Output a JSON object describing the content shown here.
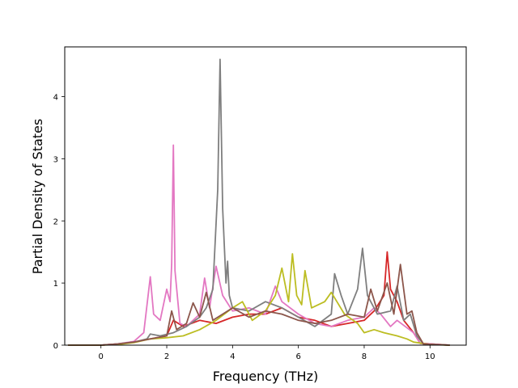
{
  "chart_data": {
    "type": "line",
    "title": "",
    "xlabel": "Frequency (THz)",
    "ylabel": "Partial Density of States",
    "xlim": [
      -1.1,
      11.1
    ],
    "ylim": [
      0,
      4.8
    ],
    "xticks": [
      0,
      2,
      4,
      6,
      8,
      10
    ],
    "yticks": [
      0,
      1,
      2,
      3,
      4
    ],
    "xtick_labels": [
      "0",
      "2",
      "4",
      "6",
      "8",
      "10"
    ],
    "ytick_labels": [
      "0",
      "1",
      "2",
      "3",
      "4"
    ],
    "grid": false,
    "legend": "none",
    "series": [
      {
        "color": "#d62728",
        "points": [
          [
            -1.0,
            0
          ],
          [
            0.0,
            0
          ],
          [
            0.5,
            0.02
          ],
          [
            1.0,
            0.05
          ],
          [
            1.5,
            0.1
          ],
          [
            2.0,
            0.15
          ],
          [
            2.2,
            0.4
          ],
          [
            2.5,
            0.3
          ],
          [
            3.0,
            0.4
          ],
          [
            3.5,
            0.35
          ],
          [
            4.0,
            0.45
          ],
          [
            4.5,
            0.5
          ],
          [
            5.0,
            0.5
          ],
          [
            5.5,
            0.6
          ],
          [
            6.0,
            0.45
          ],
          [
            6.5,
            0.4
          ],
          [
            7.0,
            0.3
          ],
          [
            7.5,
            0.35
          ],
          [
            8.0,
            0.4
          ],
          [
            8.3,
            0.55
          ],
          [
            8.6,
            0.8
          ],
          [
            8.7,
            1.5
          ],
          [
            8.8,
            0.9
          ],
          [
            9.0,
            0.7
          ],
          [
            9.2,
            0.4
          ],
          [
            9.5,
            0.2
          ],
          [
            9.7,
            0.03
          ],
          [
            10.6,
            0
          ]
        ]
      },
      {
        "color": "#e377c2",
        "points": [
          [
            -1.0,
            0
          ],
          [
            0.0,
            0
          ],
          [
            0.5,
            0.02
          ],
          [
            1.0,
            0.06
          ],
          [
            1.3,
            0.2
          ],
          [
            1.5,
            1.1
          ],
          [
            1.6,
            0.5
          ],
          [
            1.8,
            0.4
          ],
          [
            2.0,
            0.9
          ],
          [
            2.1,
            0.7
          ],
          [
            2.15,
            1.3
          ],
          [
            2.2,
            3.22
          ],
          [
            2.25,
            1.2
          ],
          [
            2.4,
            0.35
          ],
          [
            2.6,
            0.3
          ],
          [
            3.0,
            0.5
          ],
          [
            3.15,
            1.08
          ],
          [
            3.3,
            0.6
          ],
          [
            3.5,
            1.27
          ],
          [
            3.7,
            0.8
          ],
          [
            4.0,
            0.55
          ],
          [
            4.5,
            0.6
          ],
          [
            5.0,
            0.5
          ],
          [
            5.3,
            0.95
          ],
          [
            5.5,
            0.7
          ],
          [
            6.0,
            0.5
          ],
          [
            6.5,
            0.35
          ],
          [
            7.0,
            0.3
          ],
          [
            7.5,
            0.4
          ],
          [
            8.0,
            0.45
          ],
          [
            8.3,
            0.6
          ],
          [
            8.5,
            0.5
          ],
          [
            8.8,
            0.3
          ],
          [
            9.0,
            0.4
          ],
          [
            9.5,
            0.2
          ],
          [
            9.7,
            0.03
          ],
          [
            10.6,
            0
          ]
        ]
      },
      {
        "color": "#7f7f7f",
        "points": [
          [
            -1.0,
            0
          ],
          [
            0.0,
            0
          ],
          [
            0.5,
            0.02
          ],
          [
            1.0,
            0.05
          ],
          [
            1.4,
            0.1
          ],
          [
            1.5,
            0.18
          ],
          [
            1.8,
            0.15
          ],
          [
            2.2,
            0.2
          ],
          [
            2.6,
            0.3
          ],
          [
            3.0,
            0.45
          ],
          [
            3.2,
            0.6
          ],
          [
            3.4,
            0.9
          ],
          [
            3.55,
            2.5
          ],
          [
            3.62,
            4.6
          ],
          [
            3.7,
            2.2
          ],
          [
            3.8,
            1.0
          ],
          [
            3.85,
            1.35
          ],
          [
            3.9,
            0.8
          ],
          [
            4.0,
            0.6
          ],
          [
            4.5,
            0.55
          ],
          [
            5.0,
            0.7
          ],
          [
            5.5,
            0.6
          ],
          [
            6.0,
            0.45
          ],
          [
            6.5,
            0.3
          ],
          [
            7.0,
            0.5
          ],
          [
            7.1,
            1.15
          ],
          [
            7.3,
            0.8
          ],
          [
            7.5,
            0.5
          ],
          [
            7.8,
            0.9
          ],
          [
            7.95,
            1.56
          ],
          [
            8.1,
            0.8
          ],
          [
            8.4,
            0.5
          ],
          [
            8.8,
            0.55
          ],
          [
            9.0,
            0.95
          ],
          [
            9.2,
            0.4
          ],
          [
            9.4,
            0.5
          ],
          [
            9.6,
            0.15
          ],
          [
            9.8,
            0.02
          ],
          [
            10.6,
            0
          ]
        ]
      },
      {
        "color": "#bcbd22",
        "points": [
          [
            -1.0,
            0
          ],
          [
            0.0,
            0
          ],
          [
            0.5,
            0.01
          ],
          [
            1.0,
            0.04
          ],
          [
            1.5,
            0.1
          ],
          [
            2.0,
            0.12
          ],
          [
            2.5,
            0.15
          ],
          [
            3.0,
            0.25
          ],
          [
            3.5,
            0.4
          ],
          [
            4.0,
            0.6
          ],
          [
            4.3,
            0.7
          ],
          [
            4.6,
            0.4
          ],
          [
            5.0,
            0.55
          ],
          [
            5.3,
            0.8
          ],
          [
            5.5,
            1.24
          ],
          [
            5.7,
            0.7
          ],
          [
            5.82,
            1.47
          ],
          [
            5.95,
            0.8
          ],
          [
            6.1,
            0.65
          ],
          [
            6.2,
            1.2
          ],
          [
            6.4,
            0.6
          ],
          [
            6.8,
            0.7
          ],
          [
            7.0,
            0.85
          ],
          [
            7.4,
            0.5
          ],
          [
            7.8,
            0.35
          ],
          [
            8.0,
            0.2
          ],
          [
            8.3,
            0.25
          ],
          [
            8.6,
            0.2
          ],
          [
            9.0,
            0.15
          ],
          [
            9.3,
            0.1
          ],
          [
            9.5,
            0.05
          ],
          [
            10.0,
            0.01
          ],
          [
            10.6,
            0
          ]
        ]
      },
      {
        "color": "#8c564b",
        "points": [
          [
            -1.0,
            0
          ],
          [
            0.0,
            0
          ],
          [
            0.5,
            0.02
          ],
          [
            1.0,
            0.05
          ],
          [
            1.5,
            0.1
          ],
          [
            2.0,
            0.15
          ],
          [
            2.15,
            0.55
          ],
          [
            2.3,
            0.25
          ],
          [
            2.6,
            0.35
          ],
          [
            2.8,
            0.68
          ],
          [
            3.0,
            0.45
          ],
          [
            3.2,
            0.85
          ],
          [
            3.4,
            0.4
          ],
          [
            3.7,
            0.5
          ],
          [
            4.0,
            0.6
          ],
          [
            4.5,
            0.45
          ],
          [
            5.0,
            0.55
          ],
          [
            5.5,
            0.5
          ],
          [
            6.0,
            0.4
          ],
          [
            6.5,
            0.35
          ],
          [
            7.0,
            0.4
          ],
          [
            7.5,
            0.5
          ],
          [
            8.0,
            0.45
          ],
          [
            8.2,
            0.9
          ],
          [
            8.4,
            0.55
          ],
          [
            8.7,
            1.0
          ],
          [
            8.9,
            0.5
          ],
          [
            9.1,
            1.3
          ],
          [
            9.3,
            0.5
          ],
          [
            9.45,
            0.55
          ],
          [
            9.6,
            0.2
          ],
          [
            9.8,
            0.02
          ],
          [
            10.6,
            0
          ]
        ]
      }
    ]
  }
}
